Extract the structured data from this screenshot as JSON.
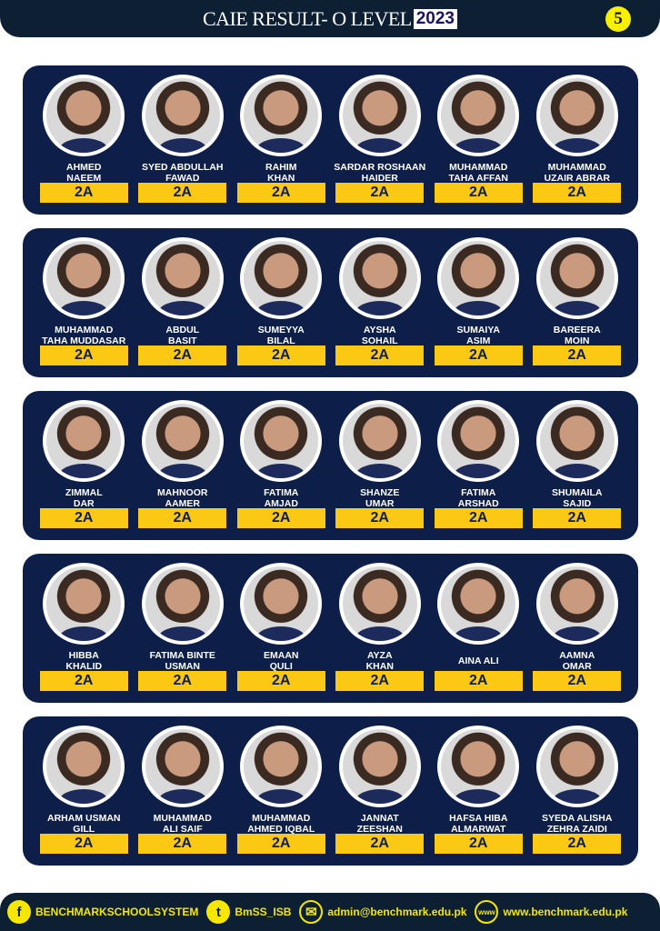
{
  "header": {
    "title": "CAIE RESULT- O LEVEL",
    "year": "2023",
    "page_number": "5"
  },
  "colors": {
    "panel": "#0d1f48",
    "header": "#0c1f33",
    "grade_bg": "#fbc813",
    "footer_text": "#f6e700"
  },
  "rows": [
    [
      {
        "name": [
          "AHMED",
          "NAEEM"
        ],
        "grade": "2A"
      },
      {
        "name": [
          "SYED ABDULLAH",
          "FAWAD"
        ],
        "grade": "2A"
      },
      {
        "name": [
          "RAHIM",
          "KHAN"
        ],
        "grade": "2A"
      },
      {
        "name": [
          "SARDAR ROSHAAN",
          "HAIDER"
        ],
        "grade": "2A"
      },
      {
        "name": [
          "MUHAMMAD",
          "TAHA AFFAN"
        ],
        "grade": "2A"
      },
      {
        "name": [
          "MUHAMMAD",
          "UZAIR ABRAR"
        ],
        "grade": "2A"
      }
    ],
    [
      {
        "name": [
          "MUHAMMAD",
          "TAHA MUDDASAR"
        ],
        "grade": "2A"
      },
      {
        "name": [
          "ABDUL",
          "BASIT"
        ],
        "grade": "2A"
      },
      {
        "name": [
          "SUMEYYA",
          "BILAL"
        ],
        "grade": "2A"
      },
      {
        "name": [
          "AYSHA",
          "SOHAIL"
        ],
        "grade": "2A"
      },
      {
        "name": [
          "SUMAIYA",
          "ASIM"
        ],
        "grade": "2A"
      },
      {
        "name": [
          "BAREERA",
          "MOIN"
        ],
        "grade": "2A"
      }
    ],
    [
      {
        "name": [
          "ZIMMAL",
          "DAR"
        ],
        "grade": "2A"
      },
      {
        "name": [
          "MAHNOOR",
          "AAMER"
        ],
        "grade": "2A"
      },
      {
        "name": [
          "FATIMA",
          "AMJAD"
        ],
        "grade": "2A"
      },
      {
        "name": [
          "SHANZE",
          "UMAR"
        ],
        "grade": "2A"
      },
      {
        "name": [
          "FATIMA",
          "ARSHAD"
        ],
        "grade": "2A"
      },
      {
        "name": [
          "SHUMAILA",
          "SAJID"
        ],
        "grade": "2A"
      }
    ],
    [
      {
        "name": [
          "HIBBA",
          "KHALID"
        ],
        "grade": "2A"
      },
      {
        "name": [
          "FATIMA BINTE",
          "USMAN"
        ],
        "grade": "2A"
      },
      {
        "name": [
          "EMAAN",
          "QULI"
        ],
        "grade": "2A"
      },
      {
        "name": [
          "AYZA",
          "KHAN"
        ],
        "grade": "2A"
      },
      {
        "name": [
          "AINA ALI"
        ],
        "grade": "2A"
      },
      {
        "name": [
          "AAMNA",
          "OMAR"
        ],
        "grade": "2A"
      }
    ],
    [
      {
        "name": [
          "ARHAM USMAN",
          "GILL"
        ],
        "grade": "2A"
      },
      {
        "name": [
          "MUHAMMAD",
          "ALI SAIF"
        ],
        "grade": "2A"
      },
      {
        "name": [
          "MUHAMMAD",
          "AHMED IQBAL"
        ],
        "grade": "2A"
      },
      {
        "name": [
          "JANNAT",
          "ZEESHAN"
        ],
        "grade": "2A"
      },
      {
        "name": [
          "HAFSA HIBA",
          "ALMARWAT"
        ],
        "grade": "2A"
      },
      {
        "name": [
          "SYEDA ALISHA",
          "ZEHRA ZAIDI"
        ],
        "grade": "2A"
      }
    ]
  ],
  "footer": {
    "facebook": "BENCHMARKSCHOOLSYSTEM",
    "twitter": "BmSS_ISB",
    "email": "admin@benchmark.edu.pk",
    "website": "www.benchmark.edu.pk",
    "facebook_icon": "facebook-icon",
    "twitter_icon": "twitter-icon",
    "email_icon": "envelope-icon",
    "web_icon": "globe-www-icon"
  }
}
